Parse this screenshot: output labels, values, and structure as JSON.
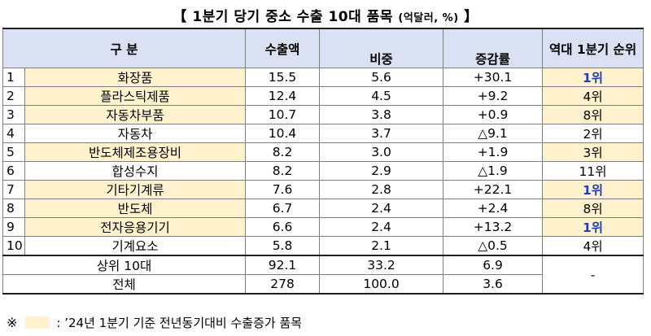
{
  "title": "【 1분기 당기 중소 수출 10대 품목",
  "title_unit": "(억달러, %)",
  "title_close": "】",
  "headers": {
    "category": "구    분",
    "export_amount": "수출액",
    "share": "비중",
    "change": "증감률",
    "rank": "역대 1분기 순위"
  },
  "rows": [
    {
      "no": "1",
      "item": "화장품",
      "amount": "15.5",
      "share": "5.6",
      "change": "+30.1",
      "rank": "1위",
      "highlight": true
    },
    {
      "no": "2",
      "item": "플라스틱제품",
      "amount": "12.4",
      "share": "4.5",
      "change": "+9.2",
      "rank": "4위",
      "highlight": true
    },
    {
      "no": "3",
      "item": "자동차부품",
      "amount": "10.7",
      "share": "3.8",
      "change": "+0.9",
      "rank": "8위",
      "highlight": true
    },
    {
      "no": "4",
      "item": "자동차",
      "amount": "10.4",
      "share": "3.7",
      "change": "△9.1",
      "rank": "2위",
      "highlight": false
    },
    {
      "no": "5",
      "item": "반도체제조용장비",
      "amount": "8.2",
      "share": "3.0",
      "change": "+1.9",
      "rank": "3위",
      "highlight": true
    },
    {
      "no": "6",
      "item": "합성수지",
      "amount": "8.2",
      "share": "2.9",
      "change": "△1.9",
      "rank": "11위",
      "highlight": false
    },
    {
      "no": "7",
      "item": "기타기계류",
      "amount": "7.6",
      "share": "2.8",
      "change": "+22.1",
      "rank": "1위",
      "highlight": true
    },
    {
      "no": "8",
      "item": "반도체",
      "amount": "6.7",
      "share": "2.4",
      "change": "+2.4",
      "rank": "8위",
      "highlight": true
    },
    {
      "no": "9",
      "item": "전자응용기기",
      "amount": "6.6",
      "share": "2.4",
      "change": "+13.2",
      "rank": "1위",
      "highlight": true
    },
    {
      "no": "10",
      "item": "기계요소",
      "amount": "5.8",
      "share": "2.1",
      "change": "△0.5",
      "rank": "4위",
      "highlight": false
    }
  ],
  "summary": [
    {
      "label": "상위 10대",
      "amount": "92.1",
      "share": "33.2",
      "change": "6.9"
    },
    {
      "label": "전체",
      "amount": "278",
      "share": "100.0",
      "change": "3.6"
    }
  ],
  "summary_rank": "-",
  "note": {
    "mark": "※",
    "text": ": ’24년 1분기 기준 전년동기대비 수출증가 품목"
  },
  "colors": {
    "header_bg": "#d9e1f2",
    "highlight_bg": "#fff2cc",
    "top_rank_text": "#1f3fbf"
  }
}
